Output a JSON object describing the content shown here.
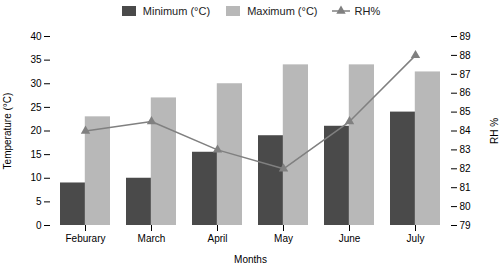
{
  "chart_data": {
    "type": "bar",
    "categories": [
      "Feburary",
      "March",
      "April",
      "May",
      "June",
      "July"
    ],
    "series": [
      {
        "name": "Minimum (°C)",
        "type": "bar",
        "color": "#4a4a4a",
        "values": [
          9,
          10,
          15.5,
          19,
          21,
          24
        ]
      },
      {
        "name": "Maximum (°C)",
        "type": "bar",
        "color": "#b8b8b8",
        "values": [
          23,
          27,
          30,
          34,
          34,
          32.5
        ]
      },
      {
        "name": "RH%",
        "type": "line",
        "axis": "y2",
        "color": "#808080",
        "marker": "triangle",
        "values": [
          84.0,
          84.5,
          83.0,
          82.0,
          84.5,
          88.0
        ]
      }
    ],
    "xlabel": "Months",
    "ylabel": "Temperature (°C)",
    "y2label": "RH %",
    "ylim": [
      0,
      40
    ],
    "yticks": [
      0,
      5,
      10,
      15,
      20,
      25,
      30,
      35,
      40
    ],
    "y2lim": [
      79.0,
      89.0
    ],
    "y2ticks": [
      79.0,
      80.0,
      81.0,
      82.0,
      83.0,
      84.0,
      85.0,
      86.0,
      87.0,
      88.0,
      89.0
    ],
    "legend": "top",
    "grid": false
  }
}
